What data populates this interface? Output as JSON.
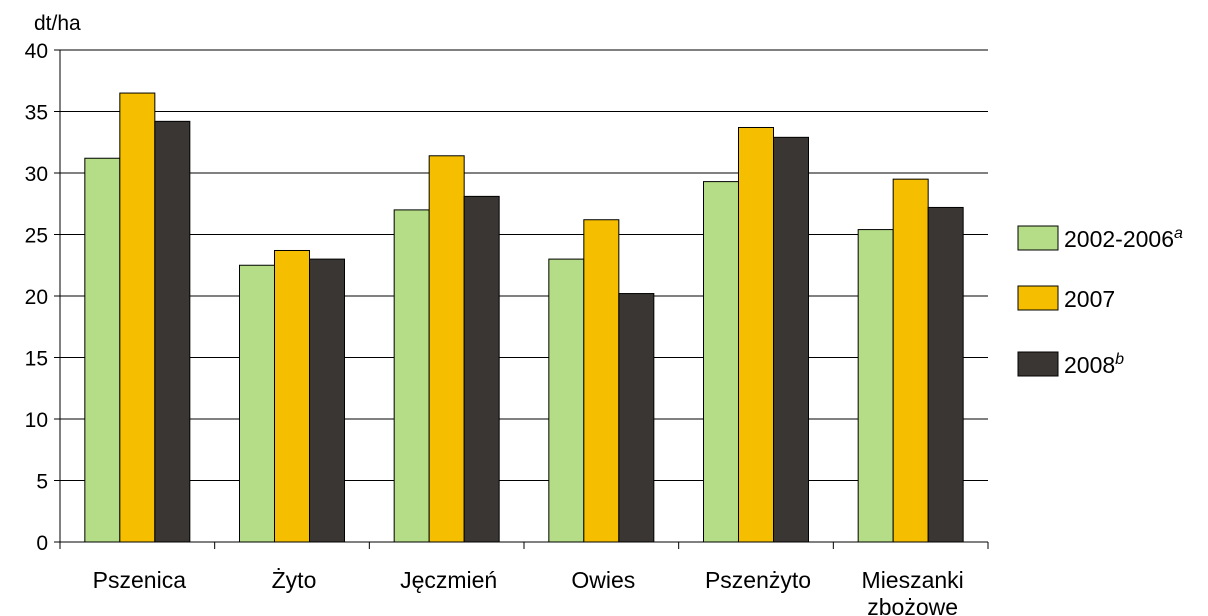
{
  "chart_data": {
    "type": "bar",
    "ylabel": "dt/ha",
    "ylim": [
      0,
      40
    ],
    "yticks": [
      0,
      5,
      10,
      15,
      20,
      25,
      30,
      35,
      40
    ],
    "grid": true,
    "legend_position": "right",
    "categories": [
      [
        "Pszenica"
      ],
      [
        "Żyto"
      ],
      [
        "Jęczmień"
      ],
      [
        "Owies"
      ],
      [
        "Pszenżyto"
      ],
      [
        "Mieszanki",
        "zbożowe"
      ]
    ],
    "series": [
      {
        "name": "2002-2006",
        "superscript": "a",
        "color": "#b5dc86",
        "values": [
          31.2,
          22.5,
          27.0,
          23.0,
          29.3,
          25.4
        ]
      },
      {
        "name": "2007",
        "superscript": "",
        "color": "#f5bf00",
        "values": [
          36.5,
          23.7,
          31.4,
          26.2,
          33.7,
          29.5
        ]
      },
      {
        "name": "2008",
        "superscript": "b",
        "color": "#393633",
        "values": [
          34.2,
          23.0,
          28.1,
          20.2,
          32.9,
          27.2
        ]
      }
    ]
  }
}
